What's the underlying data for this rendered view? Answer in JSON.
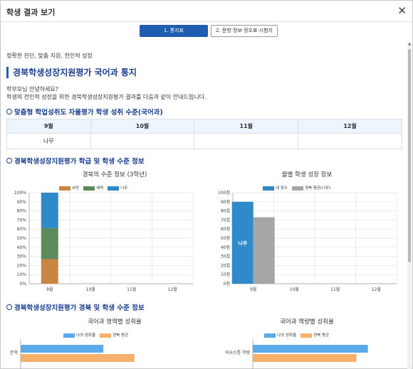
{
  "window": {
    "title": "학생 결과 보기",
    "close_glyph": "✕"
  },
  "tabs": [
    {
      "label": "1. 통지표",
      "active": true
    },
    {
      "label": "2. 문항 정보·정오표·시험지",
      "active": false
    }
  ],
  "page": {
    "subtitle": "정확한 진단, 맞춤 지원, 전인적 성장",
    "title": "경북학생성장지원평가 국어과 통지",
    "greeting1": "학부모님 안녕하세요?",
    "greeting2": "학생의 전인적 성장을 위한 경북학생성장지원평가 결과를 다음과 같이 안내드립니다."
  },
  "section1": {
    "title": "맞춤형 학업성취도 자율평가 학생 성취 수준(국어과)",
    "headers": [
      "9월",
      "10월",
      "11월",
      "12월"
    ],
    "values": [
      "나무",
      "",
      "",
      ""
    ]
  },
  "section2": {
    "title": "경북학생성장지원평가 학급 및 학생 수준 정보"
  },
  "section3": {
    "title": "경북학생성장지원평가 경북 및 학생 수준 정보"
  },
  "colors": {
    "accent": "#1e5db0",
    "blue": "#2f8ac9",
    "green": "#5c8a5c",
    "brown": "#c98542",
    "gray": "#a6a6a6",
    "light_blue": "#5aaaea",
    "orange": "#f7b06b"
  },
  "chart_data": [
    {
      "type": "bar",
      "stacked": true,
      "title": "경북의 수준 정보 (3학년)",
      "categories": [
        "9월",
        "10월",
        "11월",
        "12월"
      ],
      "series": [
        {
          "name": "씨앗",
          "values": [
            27,
            0,
            0,
            0
          ],
          "color": "#c98542"
        },
        {
          "name": "새싹",
          "values": [
            34,
            0,
            0,
            0
          ],
          "color": "#5c8a5c"
        },
        {
          "name": "나무",
          "values": [
            39,
            0,
            0,
            0
          ],
          "color": "#2f8ac9"
        }
      ],
      "yticks": [
        "0%",
        "10%",
        "20%",
        "30%",
        "40%",
        "50%",
        "60%",
        "70%",
        "80%",
        "90%",
        "100%"
      ],
      "ylim": [
        0,
        100
      ],
      "legend": "top"
    },
    {
      "type": "bar",
      "title": "월별 학생 성장 정보",
      "categories": [
        "9월",
        "10월",
        "11월",
        "12월"
      ],
      "series": [
        {
          "name": "내 점수",
          "values": [
            90,
            null,
            null,
            null
          ],
          "color": "#2f8ac9",
          "labels": [
            "나무",
            "",
            "",
            ""
          ]
        },
        {
          "name": "경북 평균(나무)",
          "values": [
            73,
            null,
            null,
            null
          ],
          "color": "#a6a6a6"
        }
      ],
      "yticks": [
        "0점",
        "10점",
        "20점",
        "30점",
        "40점",
        "50점",
        "60점",
        "70점",
        "80점",
        "90점",
        "100점"
      ],
      "ylim": [
        0,
        100
      ],
      "legend": "top"
    },
    {
      "type": "bar",
      "orientation": "horizontal",
      "title": "국어과 영역별 성취율",
      "categories": [
        "문학"
      ],
      "series": [
        {
          "name": "나의 성취율",
          "values": [
            48
          ],
          "color": "#5aaaea"
        },
        {
          "name": "경북 평균",
          "values": [
            66
          ],
          "color": "#f7b06b"
        }
      ],
      "xlim": [
        0,
        100
      ],
      "legend": "top"
    },
    {
      "type": "bar",
      "orientation": "horizontal",
      "title": "국어과 역량별 성취율",
      "categories": [
        "의사소통 역량"
      ],
      "series": [
        {
          "name": "나의 성취율",
          "values": [
            80
          ],
          "color": "#5aaaea"
        },
        {
          "name": "경북 평균",
          "values": [
            72
          ],
          "color": "#f7b06b"
        }
      ],
      "xlim": [
        0,
        100
      ],
      "legend": "top"
    }
  ]
}
